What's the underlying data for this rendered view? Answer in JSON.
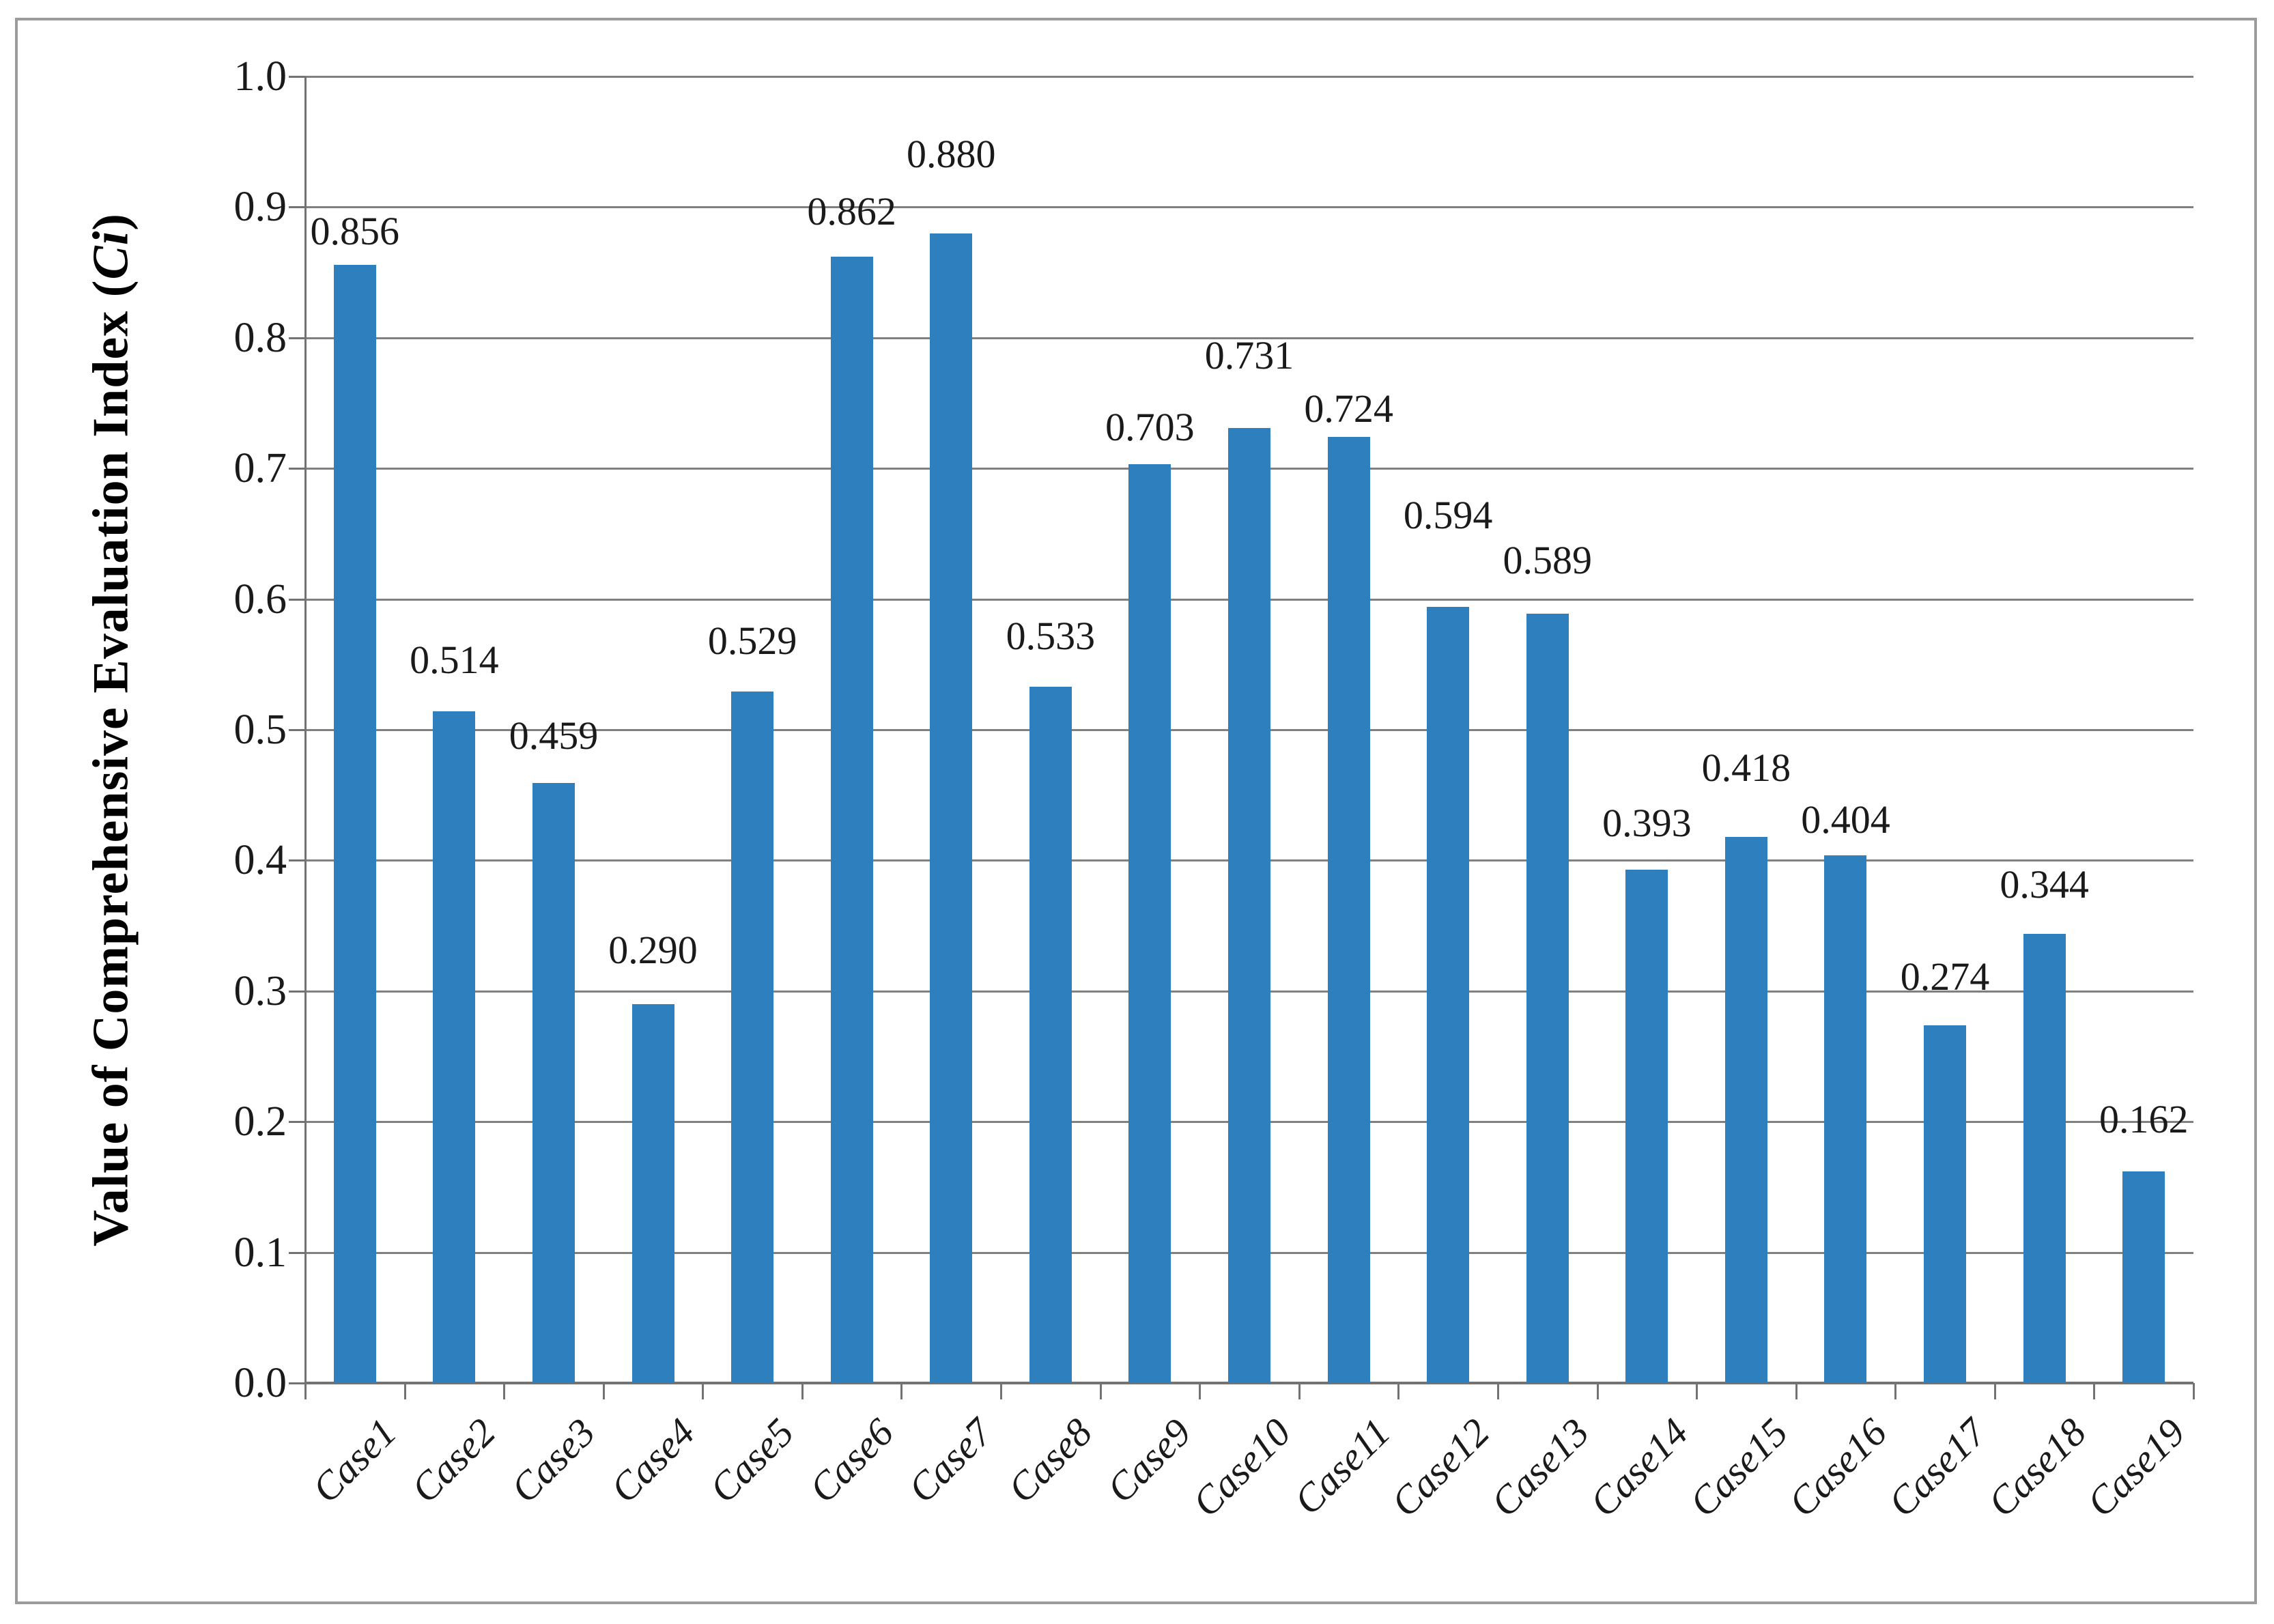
{
  "figure": {
    "background": "#ffffff",
    "frame_border_color": "#9b9b9b"
  },
  "chart_data": {
    "type": "bar",
    "title": "",
    "xlabel": "",
    "ylabel": "Value of Comprehensive Evaluation Index (Ci)",
    "ylabel_parts": {
      "prefix": "Value of Comprehensive Evaluation Index (",
      "italic": "Ci",
      "suffix": ")"
    },
    "categories": [
      "Case1",
      "Case2",
      "Case3",
      "Case4",
      "Case5",
      "Case6",
      "Case7",
      "Case8",
      "Case9",
      "Case10",
      "Case11",
      "Case12",
      "Case13",
      "Case14",
      "Case15",
      "Case16",
      "Case17",
      "Case18",
      "Case19"
    ],
    "values": [
      0.856,
      0.514,
      0.459,
      0.29,
      0.529,
      0.862,
      0.88,
      0.533,
      0.703,
      0.731,
      0.724,
      0.594,
      0.589,
      0.393,
      0.418,
      0.404,
      0.274,
      0.344,
      0.162
    ],
    "data_labels": [
      "0.856",
      "0.514",
      "0.459",
      "0.290",
      "0.529",
      "0.862",
      "0.880",
      "0.533",
      "0.703",
      "0.731",
      "0.724",
      "0.594",
      "0.589",
      "0.393",
      "0.418",
      "0.404",
      "0.274",
      "0.344",
      "0.162"
    ],
    "ytick_labels": [
      "0.0",
      "0.1",
      "0.2",
      "0.3",
      "0.4",
      "0.5",
      "0.6",
      "0.7",
      "0.8",
      "0.9",
      "1.0"
    ],
    "ylim": [
      0,
      1
    ],
    "ytick_step": 0.1,
    "grid": "horizontal",
    "legend": "none",
    "colors": {
      "bar": "#2D7FBE",
      "gridline": "#808080",
      "axis": "#737373",
      "text": "#1a1a1a"
    },
    "label_offsets": [
      20,
      46,
      40,
      50,
      45,
      37,
      87,
      45,
      25,
      77,
      12,
      105,
      49,
      39,
      72,
      23,
      42,
      43,
      47
    ]
  }
}
